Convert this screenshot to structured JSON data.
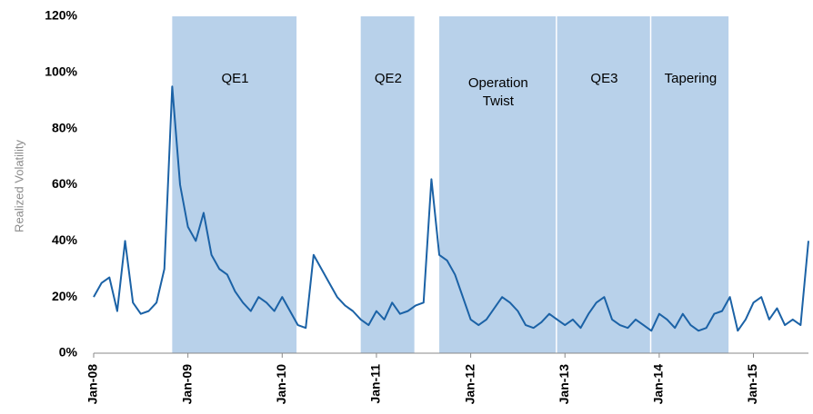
{
  "chart_data": {
    "type": "line",
    "ylabel": "Realized Volatility",
    "x": [
      "Jan-08",
      "Feb-08",
      "Mar-08",
      "Apr-08",
      "May-08",
      "Jun-08",
      "Jul-08",
      "Aug-08",
      "Sep-08",
      "Oct-08",
      "Nov-08",
      "Dec-08",
      "Jan-09",
      "Feb-09",
      "Mar-09",
      "Apr-09",
      "May-09",
      "Jun-09",
      "Jul-09",
      "Aug-09",
      "Sep-09",
      "Oct-09",
      "Nov-09",
      "Dec-09",
      "Jan-10",
      "Feb-10",
      "Mar-10",
      "Apr-10",
      "May-10",
      "Jun-10",
      "Jul-10",
      "Aug-10",
      "Sep-10",
      "Oct-10",
      "Nov-10",
      "Dec-10",
      "Jan-11",
      "Feb-11",
      "Mar-11",
      "Apr-11",
      "May-11",
      "Jun-11",
      "Jul-11",
      "Aug-11",
      "Sep-11",
      "Oct-11",
      "Nov-11",
      "Dec-11",
      "Jan-12",
      "Feb-12",
      "Mar-12",
      "Apr-12",
      "May-12",
      "Jun-12",
      "Jul-12",
      "Aug-12",
      "Sep-12",
      "Oct-12",
      "Nov-12",
      "Dec-12",
      "Jan-13",
      "Feb-13",
      "Mar-13",
      "Apr-13",
      "May-13",
      "Jun-13",
      "Jul-13",
      "Aug-13",
      "Sep-13",
      "Oct-13",
      "Nov-13",
      "Dec-13",
      "Jan-14",
      "Feb-14",
      "Mar-14",
      "Apr-14",
      "May-14",
      "Jun-14",
      "Jul-14",
      "Aug-14",
      "Sep-14",
      "Oct-14",
      "Nov-14",
      "Dec-14",
      "Jan-15",
      "Feb-15",
      "Mar-15",
      "Apr-15",
      "May-15",
      "Jun-15",
      "Jul-15",
      "Aug-15"
    ],
    "series": [
      {
        "name": "Realized Volatility",
        "color": "#1b62a6",
        "values": [
          20,
          25,
          27,
          15,
          40,
          18,
          14,
          15,
          18,
          30,
          95,
          60,
          45,
          40,
          50,
          35,
          30,
          28,
          22,
          18,
          15,
          20,
          18,
          15,
          20,
          15,
          10,
          9,
          35,
          30,
          25,
          20,
          17,
          15,
          12,
          10,
          15,
          12,
          18,
          14,
          15,
          17,
          18,
          62,
          35,
          33,
          28,
          20,
          12,
          10,
          12,
          16,
          20,
          18,
          15,
          10,
          9,
          11,
          14,
          12,
          10,
          12,
          9,
          14,
          18,
          20,
          12,
          10,
          9,
          12,
          10,
          8,
          14,
          12,
          9,
          14,
          10,
          8,
          9,
          14,
          15,
          20,
          8,
          12,
          18,
          20,
          12,
          16,
          10,
          12,
          10,
          40
        ]
      }
    ],
    "regions": [
      {
        "label": "QE1",
        "start": "Nov-08",
        "end": "Mar-10"
      },
      {
        "label": "QE2",
        "start": "Nov-10",
        "end": "Jun-11"
      },
      {
        "label": [
          "Operation",
          "Twist"
        ],
        "start": "Sep-11",
        "end": "Dec-12"
      },
      {
        "label": "QE3",
        "start": "Dec-12",
        "end": "Dec-13"
      },
      {
        "label": "Tapering",
        "start": "Dec-13",
        "end": "Oct-14"
      }
    ],
    "region_color": "#b8d1ea",
    "xlim": [
      "Jan-08",
      "Aug-15"
    ],
    "xticks": [
      "Jan-08",
      "Jan-09",
      "Jan-10",
      "Jan-11",
      "Jan-12",
      "Jan-13",
      "Jan-14",
      "Jan-15"
    ],
    "ylim": [
      0,
      120
    ],
    "yticks": [
      {
        "value": 0,
        "label": "0%"
      },
      {
        "value": 20,
        "label": "20%"
      },
      {
        "value": 40,
        "label": "40%"
      },
      {
        "value": 60,
        "label": "60%"
      },
      {
        "value": 80,
        "label": "80%"
      },
      {
        "value": 100,
        "label": "100%"
      },
      {
        "value": 120,
        "label": "120%"
      }
    ],
    "grid": false
  }
}
